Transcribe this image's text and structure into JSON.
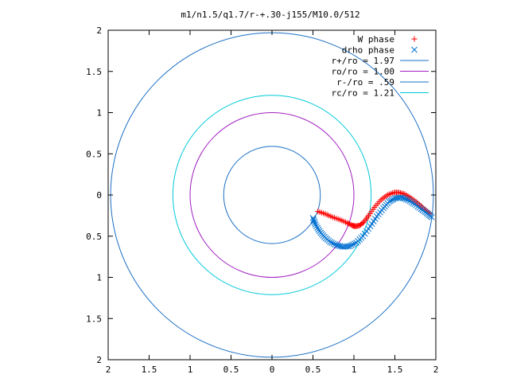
{
  "chart_data": {
    "type": "scatter",
    "title": "m1/n1.5/q1.7/r-+.30-j155/M10.0/512",
    "xlabel": "",
    "ylabel": "",
    "xlim": [
      -2,
      2
    ],
    "ylim": [
      -2,
      2
    ],
    "x_tick_values": [
      -2,
      -1.5,
      -1,
      -0.5,
      0,
      0.5,
      1,
      1.5,
      2
    ],
    "x_tick_labels": [
      "2",
      "1.5",
      "1",
      "0.5",
      "0",
      "0.5",
      "1",
      "1.5",
      "2"
    ],
    "y_tick_values": [
      2,
      1.5,
      1,
      0.5,
      0,
      -0.5,
      -1,
      -1.5,
      -2
    ],
    "y_tick_labels": [
      "2",
      "1.5",
      "1",
      "0.5",
      "0",
      "0.5",
      "1",
      "1.5",
      "2"
    ],
    "grid": false,
    "legend_position": "top-right",
    "series": [
      {
        "name": "W phase",
        "kind": "points",
        "marker": "plus",
        "color": "#ff0000",
        "points": [
          [
            0.56,
            -0.2
          ],
          [
            0.65,
            -0.23
          ],
          [
            0.74,
            -0.27
          ],
          [
            0.83,
            -0.3
          ],
          [
            0.92,
            -0.34
          ],
          [
            0.98,
            -0.37
          ],
          [
            1.02,
            -0.38
          ],
          [
            1.07,
            -0.37
          ],
          [
            1.12,
            -0.33
          ],
          [
            1.18,
            -0.25
          ],
          [
            1.25,
            -0.15
          ],
          [
            1.33,
            -0.06
          ],
          [
            1.41,
            0.0
          ],
          [
            1.49,
            0.03
          ],
          [
            1.55,
            0.03
          ],
          [
            1.62,
            0.01
          ],
          [
            1.7,
            -0.04
          ],
          [
            1.78,
            -0.1
          ],
          [
            1.86,
            -0.17
          ],
          [
            1.93,
            -0.23
          ]
        ]
      },
      {
        "name": "drho phase",
        "kind": "points",
        "marker": "cross",
        "color": "#0070d0",
        "points": [
          [
            0.5,
            -0.28
          ],
          [
            0.53,
            -0.36
          ],
          [
            0.58,
            -0.44
          ],
          [
            0.64,
            -0.51
          ],
          [
            0.71,
            -0.57
          ],
          [
            0.79,
            -0.61
          ],
          [
            0.87,
            -0.63
          ],
          [
            0.95,
            -0.62
          ],
          [
            1.03,
            -0.58
          ],
          [
            1.11,
            -0.5
          ],
          [
            1.2,
            -0.38
          ],
          [
            1.28,
            -0.26
          ],
          [
            1.36,
            -0.16
          ],
          [
            1.43,
            -0.08
          ],
          [
            1.5,
            -0.04
          ],
          [
            1.58,
            -0.03
          ],
          [
            1.66,
            -0.06
          ],
          [
            1.74,
            -0.11
          ],
          [
            1.82,
            -0.17
          ],
          [
            1.89,
            -0.22
          ],
          [
            1.95,
            -0.27
          ]
        ]
      },
      {
        "name": "r+/ro = 1.97",
        "kind": "circle",
        "radius": 1.97,
        "color": "#1a6fc4"
      },
      {
        "name": "ro/ro = 1.00",
        "kind": "circle",
        "radius": 1.0,
        "color": "#a020c0"
      },
      {
        "name": "r-/ro = .59",
        "kind": "circle",
        "radius": 0.59,
        "color": "#1a6fc4"
      },
      {
        "name": "rc/ro = 1.21",
        "kind": "circle",
        "radius": 1.21,
        "color": "#00c8d8"
      }
    ]
  }
}
